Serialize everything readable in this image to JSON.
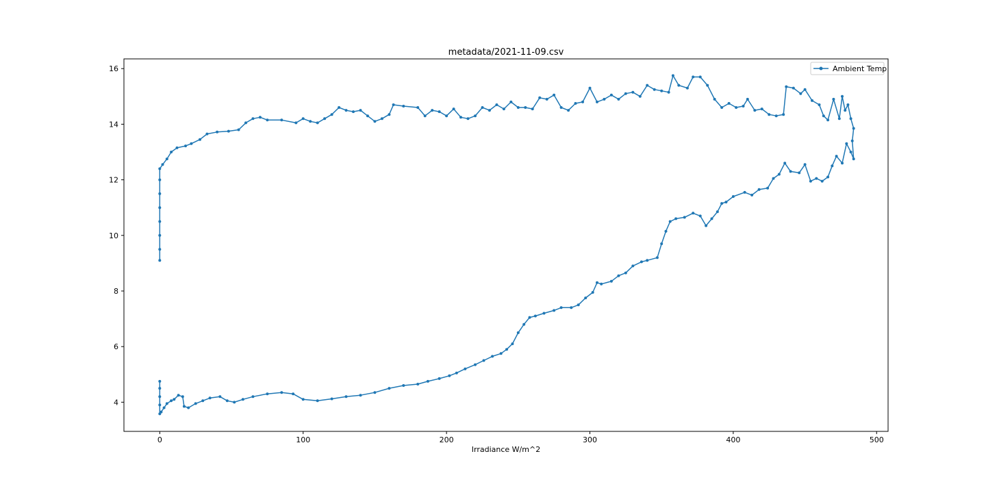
{
  "chart_data": {
    "type": "line",
    "title": "metadata/2021-11-09.csv",
    "xlabel": "Irradiance W/m^2",
    "ylabel": "",
    "xlim": [
      -25,
      508
    ],
    "ylim": [
      2.95,
      16.35
    ],
    "xticks": [
      0,
      100,
      200,
      300,
      400,
      500
    ],
    "yticks": [
      4,
      6,
      8,
      10,
      12,
      14,
      16
    ],
    "xtick_labels": [
      "0",
      "100",
      "200",
      "300",
      "400",
      "500"
    ],
    "ytick_labels": [
      "4",
      "6",
      "8",
      "10",
      "12",
      "14",
      "16"
    ],
    "grid": false,
    "legend_position": "upper right",
    "series": [
      {
        "name": "Ambient Temp",
        "color": "#1f77b4",
        "marker": "dot",
        "points": [
          [
            0,
            9.1
          ],
          [
            0,
            9.5
          ],
          [
            0,
            10.0
          ],
          [
            0,
            10.5
          ],
          [
            0,
            11.0
          ],
          [
            0,
            11.5
          ],
          [
            0,
            12.0
          ],
          [
            0,
            12.4
          ],
          [
            2,
            12.55
          ],
          [
            5,
            12.75
          ],
          [
            8,
            13.0
          ],
          [
            12,
            13.15
          ],
          [
            18,
            13.22
          ],
          [
            22,
            13.3
          ],
          [
            28,
            13.45
          ],
          [
            33,
            13.65
          ],
          [
            40,
            13.72
          ],
          [
            48,
            13.75
          ],
          [
            55,
            13.8
          ],
          [
            60,
            14.05
          ],
          [
            65,
            14.2
          ],
          [
            70,
            14.25
          ],
          [
            75,
            14.15
          ],
          [
            85,
            14.15
          ],
          [
            95,
            14.05
          ],
          [
            100,
            14.2
          ],
          [
            105,
            14.1
          ],
          [
            110,
            14.05
          ],
          [
            115,
            14.2
          ],
          [
            120,
            14.35
          ],
          [
            125,
            14.6
          ],
          [
            130,
            14.5
          ],
          [
            135,
            14.45
          ],
          [
            140,
            14.5
          ],
          [
            145,
            14.3
          ],
          [
            150,
            14.1
          ],
          [
            155,
            14.2
          ],
          [
            160,
            14.35
          ],
          [
            163,
            14.7
          ],
          [
            170,
            14.65
          ],
          [
            180,
            14.6
          ],
          [
            185,
            14.3
          ],
          [
            190,
            14.5
          ],
          [
            195,
            14.45
          ],
          [
            200,
            14.3
          ],
          [
            205,
            14.55
          ],
          [
            210,
            14.25
          ],
          [
            215,
            14.2
          ],
          [
            220,
            14.3
          ],
          [
            225,
            14.6
          ],
          [
            230,
            14.5
          ],
          [
            235,
            14.7
          ],
          [
            240,
            14.55
          ],
          [
            245,
            14.8
          ],
          [
            250,
            14.6
          ],
          [
            255,
            14.6
          ],
          [
            260,
            14.55
          ],
          [
            265,
            14.95
          ],
          [
            270,
            14.9
          ],
          [
            275,
            15.05
          ],
          [
            280,
            14.6
          ],
          [
            285,
            14.5
          ],
          [
            290,
            14.75
          ],
          [
            295,
            14.8
          ],
          [
            300,
            15.3
          ],
          [
            305,
            14.8
          ],
          [
            310,
            14.9
          ],
          [
            315,
            15.05
          ],
          [
            320,
            14.9
          ],
          [
            325,
            15.1
          ],
          [
            330,
            15.15
          ],
          [
            335,
            15.0
          ],
          [
            340,
            15.4
          ],
          [
            345,
            15.25
          ],
          [
            350,
            15.2
          ],
          [
            355,
            15.15
          ],
          [
            358,
            15.75
          ],
          [
            362,
            15.4
          ],
          [
            368,
            15.3
          ],
          [
            372,
            15.7
          ],
          [
            377,
            15.7
          ],
          [
            382,
            15.4
          ],
          [
            387,
            14.9
          ],
          [
            392,
            14.6
          ],
          [
            397,
            14.75
          ],
          [
            402,
            14.6
          ],
          [
            407,
            14.65
          ],
          [
            410,
            14.9
          ],
          [
            415,
            14.5
          ],
          [
            420,
            14.55
          ],
          [
            425,
            14.35
          ],
          [
            430,
            14.3
          ],
          [
            435,
            14.35
          ],
          [
            437,
            15.35
          ],
          [
            442,
            15.3
          ],
          [
            447,
            15.1
          ],
          [
            450,
            15.25
          ],
          [
            455,
            14.85
          ],
          [
            460,
            14.7
          ],
          [
            463,
            14.3
          ],
          [
            466,
            14.15
          ],
          [
            470,
            14.9
          ],
          [
            474,
            14.2
          ],
          [
            476,
            15.0
          ],
          [
            478,
            14.5
          ],
          [
            480,
            14.7
          ],
          [
            482,
            14.2
          ],
          [
            484,
            13.85
          ],
          [
            483,
            13.4
          ],
          [
            484,
            12.75
          ],
          [
            482,
            13.0
          ],
          [
            479,
            13.3
          ],
          [
            476,
            12.6
          ],
          [
            472,
            12.85
          ],
          [
            469,
            12.5
          ],
          [
            466,
            12.1
          ],
          [
            462,
            11.95
          ],
          [
            458,
            12.05
          ],
          [
            454,
            11.95
          ],
          [
            450,
            12.55
          ],
          [
            446,
            12.25
          ],
          [
            440,
            12.3
          ],
          [
            436,
            12.6
          ],
          [
            432,
            12.2
          ],
          [
            428,
            12.05
          ],
          [
            424,
            11.7
          ],
          [
            418,
            11.65
          ],
          [
            413,
            11.45
          ],
          [
            408,
            11.55
          ],
          [
            400,
            11.4
          ],
          [
            395,
            11.2
          ],
          [
            392,
            11.15
          ],
          [
            389,
            10.85
          ],
          [
            385,
            10.6
          ],
          [
            381,
            10.35
          ],
          [
            377,
            10.7
          ],
          [
            372,
            10.8
          ],
          [
            366,
            10.65
          ],
          [
            360,
            10.6
          ],
          [
            356,
            10.5
          ],
          [
            353,
            10.15
          ],
          [
            350,
            9.7
          ],
          [
            347,
            9.2
          ],
          [
            340,
            9.1
          ],
          [
            336,
            9.05
          ],
          [
            330,
            8.9
          ],
          [
            325,
            8.65
          ],
          [
            320,
            8.55
          ],
          [
            315,
            8.35
          ],
          [
            308,
            8.25
          ],
          [
            305,
            8.3
          ],
          [
            302,
            7.95
          ],
          [
            297,
            7.75
          ],
          [
            292,
            7.5
          ],
          [
            287,
            7.4
          ],
          [
            280,
            7.4
          ],
          [
            275,
            7.3
          ],
          [
            268,
            7.2
          ],
          [
            262,
            7.1
          ],
          [
            258,
            7.05
          ],
          [
            254,
            6.8
          ],
          [
            250,
            6.5
          ],
          [
            246,
            6.1
          ],
          [
            242,
            5.9
          ],
          [
            238,
            5.75
          ],
          [
            232,
            5.65
          ],
          [
            226,
            5.5
          ],
          [
            220,
            5.35
          ],
          [
            213,
            5.2
          ],
          [
            207,
            5.05
          ],
          [
            202,
            4.95
          ],
          [
            195,
            4.85
          ],
          [
            187,
            4.75
          ],
          [
            180,
            4.65
          ],
          [
            170,
            4.6
          ],
          [
            160,
            4.5
          ],
          [
            150,
            4.35
          ],
          [
            140,
            4.25
          ],
          [
            130,
            4.2
          ],
          [
            120,
            4.12
          ],
          [
            110,
            4.05
          ],
          [
            100,
            4.1
          ],
          [
            93,
            4.3
          ],
          [
            85,
            4.35
          ],
          [
            75,
            4.3
          ],
          [
            65,
            4.2
          ],
          [
            58,
            4.1
          ],
          [
            52,
            4.0
          ],
          [
            47,
            4.05
          ],
          [
            42,
            4.2
          ],
          [
            35,
            4.15
          ],
          [
            30,
            4.05
          ],
          [
            25,
            3.95
          ],
          [
            20,
            3.8
          ],
          [
            17,
            3.85
          ],
          [
            16,
            4.2
          ],
          [
            13,
            4.25
          ],
          [
            10,
            4.1
          ],
          [
            8,
            4.05
          ],
          [
            5,
            3.95
          ],
          [
            3,
            3.8
          ],
          [
            1,
            3.65
          ],
          [
            0,
            3.58
          ],
          [
            0,
            3.9
          ],
          [
            0,
            4.2
          ],
          [
            0,
            4.5
          ],
          [
            0,
            4.75
          ]
        ]
      }
    ]
  }
}
